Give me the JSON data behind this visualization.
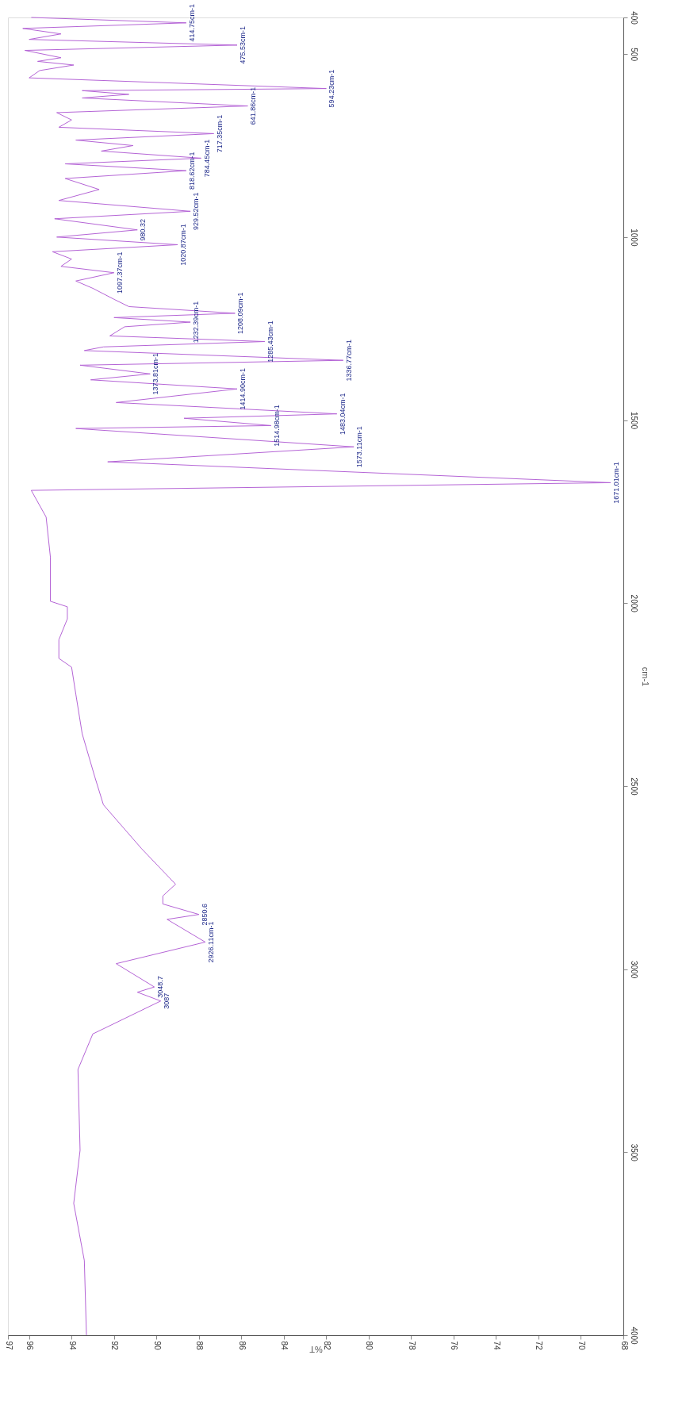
{
  "chart_data": {
    "type": "line",
    "xlabel": "%T",
    "ylabel": "cm-1",
    "xlim": [
      97,
      68
    ],
    "ylim": [
      4000,
      400
    ],
    "yticks": [
      4000,
      3500,
      3000,
      2500,
      2000,
      1500,
      1000,
      500,
      400
    ],
    "xticks": [
      97,
      96,
      94,
      92,
      90,
      88,
      86,
      84,
      82,
      80,
      78,
      76,
      74,
      72,
      70,
      68
    ],
    "grid": false,
    "marker": "none",
    "line_style": "solid",
    "series": [
      {
        "color": "#b565d6",
        "values": [
          400,
          414.75,
          430,
          445,
          460,
          475.53,
          490,
          510,
          520,
          530,
          545,
          565,
          594.23,
          600,
          610,
          620,
          641.86,
          660,
          680,
          700,
          717.35,
          735,
          750,
          765,
          784.45,
          800,
          818.62,
          840,
          870,
          900,
          929.52,
          950,
          980.32,
          1000,
          1020.87,
          1040,
          1060,
          1080,
          1097.37,
          1120,
          1140,
          1170,
          1190,
          1208.09,
          1220,
          1232.39,
          1245,
          1270,
          1285.43,
          1300,
          1310,
          1336.77,
          1350,
          1373.81,
          1390,
          1414.9,
          1452,
          1483.04,
          1495,
          1514.98,
          1523,
          1573.11,
          1614,
          1671.01,
          1692,
          1765,
          1874,
          1995,
          2010,
          2043,
          2100,
          2151,
          2175,
          2249,
          2357,
          2476,
          2551,
          2671,
          2768,
          2800,
          2822,
          2850.6,
          2864,
          2926.11,
          2985,
          3048.7,
          3063,
          3087,
          3177,
          3274,
          3495,
          3640,
          3796,
          4000
        ],
        "x": [
          95.9,
          88.6,
          96.3,
          94.5,
          96.0,
          86.2,
          96.2,
          94.5,
          95.6,
          93.9,
          95.5,
          96.0,
          82.0,
          93.5,
          91.3,
          93.5,
          85.7,
          94.7,
          94.0,
          94.6,
          87.3,
          93.8,
          91.1,
          92.6,
          87.9,
          94.3,
          88.6,
          94.3,
          92.7,
          94.6,
          88.4,
          94.8,
          90.9,
          94.7,
          89.0,
          94.9,
          94.0,
          94.5,
          92.0,
          93.8,
          93.0,
          92.0,
          91.3,
          86.3,
          92.0,
          88.4,
          91.5,
          92.2,
          84.9,
          92.5,
          93.4,
          81.2,
          93.6,
          90.3,
          93.1,
          86.2,
          91.9,
          81.5,
          88.7,
          84.6,
          93.8,
          80.7,
          92.3,
          68.6,
          95.9,
          95.2,
          95.0,
          95.0,
          94.2,
          94.2,
          94.6,
          94.6,
          94.0,
          93.8,
          93.5,
          92.9,
          92.5,
          90.7,
          89.1,
          89.7,
          89.7,
          88.0,
          89.5,
          87.7,
          91.9,
          90.1,
          90.9,
          89.8,
          93.0,
          93.7,
          93.6,
          93.9,
          93.4,
          93.3
        ]
      }
    ],
    "annotations": [
      {
        "text": "414.75cm-1",
        "y": 414.75,
        "x": 88.6
      },
      {
        "text": "475.53cm-1",
        "y": 475.53,
        "x": 86.2
      },
      {
        "text": "594.23cm-1",
        "y": 594.23,
        "x": 82.0
      },
      {
        "text": "641.86cm-1",
        "y": 641.86,
        "x": 85.7
      },
      {
        "text": "717.35cm-1",
        "y": 717.35,
        "x": 87.3
      },
      {
        "text": "784.45cm-1",
        "y": 784.45,
        "x": 87.9
      },
      {
        "text": "818.62cm-1",
        "y": 818.62,
        "x": 88.6
      },
      {
        "text": "929.52cm-1",
        "y": 929.52,
        "x": 88.4
      },
      {
        "text": "980.32",
        "y": 980.32,
        "x": 90.9
      },
      {
        "text": "1020.87cm-1",
        "y": 1020.87,
        "x": 89.0
      },
      {
        "text": "1097.37cm-1",
        "y": 1097.37,
        "x": 92.0
      },
      {
        "text": "1208.09cm-1",
        "y": 1208.09,
        "x": 86.3
      },
      {
        "text": "1232.39cm-1",
        "y": 1232.39,
        "x": 88.4
      },
      {
        "text": "1285.43cm-1",
        "y": 1285.43,
        "x": 84.9
      },
      {
        "text": "1336.77cm-1",
        "y": 1336.77,
        "x": 81.2
      },
      {
        "text": "1373.81cm-1",
        "y": 1373.81,
        "x": 90.3
      },
      {
        "text": "1414.90cm-1",
        "y": 1414.9,
        "x": 86.2
      },
      {
        "text": "1483.04cm-1",
        "y": 1483.04,
        "x": 81.5
      },
      {
        "text": "1514.98cm-1",
        "y": 1514.98,
        "x": 84.6
      },
      {
        "text": "1573.11cm-1",
        "y": 1573.11,
        "x": 80.7
      },
      {
        "text": "1671.01cm-1",
        "y": 1671.01,
        "x": 68.6
      },
      {
        "text": "2850.6",
        "y": 2850.6,
        "x": 88.0
      },
      {
        "text": "2926.11cm-1",
        "y": 2926.11,
        "x": 87.7
      },
      {
        "text": "3048.7",
        "y": 3048.7,
        "x": 90.1
      },
      {
        "text": "3087",
        "y": 3087,
        "x": 89.8
      }
    ]
  }
}
